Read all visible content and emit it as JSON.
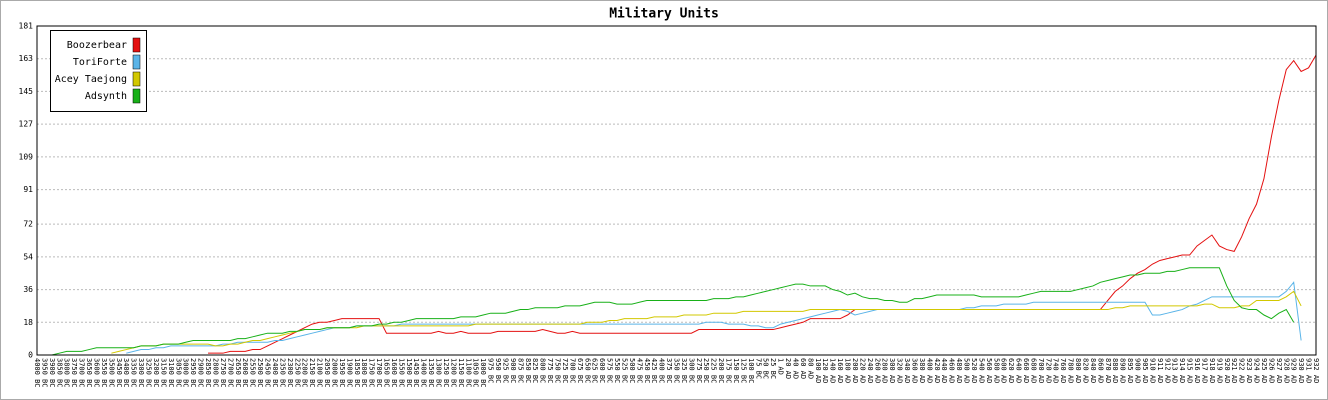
{
  "chart_data": {
    "type": "line",
    "title": "Military Units",
    "categories": [
      "4000 BC",
      "3950 BC",
      "3900 BC",
      "3850 BC",
      "3800 BC",
      "3750 BC",
      "3700 BC",
      "3650 BC",
      "3600 BC",
      "3550 BC",
      "3500 BC",
      "3450 BC",
      "3400 BC",
      "3350 BC",
      "3300 BC",
      "3250 BC",
      "3200 BC",
      "3150 BC",
      "3100 BC",
      "3050 BC",
      "3000 BC",
      "2950 BC",
      "2900 BC",
      "2850 BC",
      "2800 BC",
      "2750 BC",
      "2700 BC",
      "2650 BC",
      "2600 BC",
      "2550 BC",
      "2500 BC",
      "2450 BC",
      "2400 BC",
      "2350 BC",
      "2300 BC",
      "2250 BC",
      "2200 BC",
      "2150 BC",
      "2100 BC",
      "2050 BC",
      "2000 BC",
      "1950 BC",
      "1900 BC",
      "1850 BC",
      "1800 BC",
      "1750 BC",
      "1700 BC",
      "1650 BC",
      "1600 BC",
      "1550 BC",
      "1500 BC",
      "1450 BC",
      "1400 BC",
      "1350 BC",
      "1300 BC",
      "1250 BC",
      "1200 BC",
      "1150 BC",
      "1100 BC",
      "1050 BC",
      "1000 BC",
      "975 BC",
      "950 BC",
      "925 BC",
      "900 BC",
      "875 BC",
      "850 BC",
      "825 BC",
      "800 BC",
      "775 BC",
      "750 BC",
      "725 BC",
      "700 BC",
      "675 BC",
      "650 BC",
      "625 BC",
      "600 BC",
      "575 BC",
      "550 BC",
      "525 BC",
      "500 BC",
      "475 BC",
      "450 BC",
      "425 BC",
      "400 BC",
      "375 BC",
      "350 BC",
      "325 BC",
      "300 BC",
      "275 BC",
      "250 BC",
      "225 BC",
      "200 BC",
      "175 BC",
      "150 BC",
      "125 BC",
      "100 BC",
      "75 BC",
      "50 BC",
      "25 BC",
      "1 AD",
      "20 AD",
      "40 AD",
      "60 AD",
      "80 AD",
      "100 AD",
      "120 AD",
      "140 AD",
      "160 AD",
      "180 AD",
      "200 AD",
      "220 AD",
      "240 AD",
      "260 AD",
      "280 AD",
      "300 AD",
      "320 AD",
      "340 AD",
      "360 AD",
      "380 AD",
      "400 AD",
      "420 AD",
      "440 AD",
      "460 AD",
      "480 AD",
      "500 AD",
      "520 AD",
      "540 AD",
      "560 AD",
      "580 AD",
      "600 AD",
      "620 AD",
      "640 AD",
      "660 AD",
      "680 AD",
      "700 AD",
      "720 AD",
      "740 AD",
      "760 AD",
      "780 AD",
      "800 AD",
      "820 AD",
      "840 AD",
      "860 AD",
      "870 AD",
      "880 AD",
      "890 AD",
      "895 AD",
      "900 AD",
      "905 AD",
      "910 AD",
      "911 AD",
      "912 AD",
      "913 AD",
      "914 AD",
      "915 AD",
      "916 AD",
      "917 AD",
      "918 AD",
      "919 AD",
      "920 AD",
      "921 AD",
      "922 AD",
      "923 AD",
      "924 AD",
      "925 AD",
      "926 AD",
      "927 AD",
      "928 AD",
      "929 AD",
      "930 AD",
      "931 AD",
      "932 AD"
    ],
    "series": [
      {
        "name": "Boozerbear",
        "color": "#e41010",
        "values": [
          null,
          null,
          null,
          null,
          null,
          null,
          null,
          null,
          null,
          null,
          null,
          null,
          null,
          null,
          null,
          null,
          null,
          null,
          null,
          null,
          null,
          null,
          null,
          1,
          1,
          1,
          2,
          2,
          2,
          3,
          3,
          5,
          7,
          9,
          11,
          13,
          15,
          17,
          18,
          18,
          19,
          20,
          20,
          20,
          20,
          20,
          20,
          12,
          12,
          12,
          12,
          12,
          12,
          12,
          13,
          12,
          12,
          13,
          12,
          12,
          12,
          12,
          13,
          13,
          13,
          13,
          13,
          13,
          14,
          13,
          12,
          12,
          13,
          12,
          12,
          12,
          12,
          12,
          12,
          12,
          12,
          12,
          12,
          12,
          12,
          12,
          12,
          12,
          12,
          14,
          14,
          14,
          14,
          14,
          14,
          14,
          14,
          14,
          14,
          14,
          15,
          16,
          17,
          18,
          20,
          20,
          20,
          20,
          20,
          22,
          25,
          25,
          25,
          25,
          25,
          25,
          25,
          25,
          25,
          25,
          25,
          25,
          25,
          25,
          25,
          25,
          25,
          25,
          25,
          25,
          25,
          25,
          25,
          25,
          25,
          25,
          25,
          25,
          25,
          25,
          25,
          25,
          25,
          25,
          30,
          35,
          38,
          42,
          45,
          47,
          50,
          52,
          53,
          54,
          55,
          55,
          60,
          63,
          66,
          60,
          58,
          57,
          65,
          75,
          83,
          97,
          120,
          140,
          157,
          162,
          156,
          158,
          165
        ]
      },
      {
        "name": "ToriForte",
        "color": "#5ab4e8",
        "values": [
          null,
          null,
          null,
          null,
          null,
          null,
          null,
          null,
          null,
          null,
          null,
          null,
          1,
          2,
          3,
          3,
          4,
          4,
          5,
          5,
          5,
          5,
          5,
          5,
          5,
          6,
          6,
          7,
          7,
          7,
          7,
          7,
          8,
          8,
          9,
          10,
          11,
          12,
          13,
          14,
          15,
          15,
          15,
          16,
          16,
          16,
          16,
          16,
          16,
          17,
          17,
          17,
          17,
          17,
          17,
          17,
          17,
          17,
          17,
          17,
          17,
          17,
          17,
          17,
          17,
          17,
          17,
          17,
          17,
          17,
          17,
          17,
          17,
          17,
          17,
          17,
          17,
          17,
          17,
          17,
          17,
          17,
          17,
          17,
          17,
          17,
          17,
          17,
          17,
          17,
          18,
          18,
          18,
          17,
          17,
          17,
          16,
          16,
          15,
          15,
          17,
          18,
          19,
          20,
          21,
          22,
          23,
          24,
          25,
          24,
          22,
          23,
          24,
          25,
          25,
          25,
          25,
          25,
          25,
          25,
          25,
          25,
          25,
          25,
          25,
          26,
          26,
          27,
          27,
          27,
          28,
          28,
          28,
          28,
          29,
          29,
          29,
          29,
          29,
          29,
          29,
          29,
          29,
          29,
          29,
          29,
          29,
          29,
          29,
          29,
          22,
          22,
          23,
          24,
          25,
          27,
          28,
          30,
          32,
          32,
          32,
          32,
          32,
          32,
          32,
          32,
          32,
          32,
          35,
          40,
          8,
          null,
          null
        ]
      },
      {
        "name": "Acey Taejong",
        "color": "#d2c800",
        "values": [
          null,
          null,
          null,
          null,
          null,
          null,
          null,
          null,
          null,
          null,
          1,
          2,
          3,
          4,
          5,
          5,
          5,
          6,
          6,
          6,
          6,
          6,
          6,
          6,
          5,
          5,
          6,
          6,
          7,
          8,
          8,
          9,
          10,
          11,
          12,
          13,
          14,
          14,
          14,
          15,
          15,
          15,
          15,
          15,
          16,
          16,
          16,
          16,
          16,
          16,
          16,
          16,
          16,
          16,
          16,
          16,
          16,
          16,
          16,
          17,
          17,
          17,
          17,
          17,
          17,
          17,
          17,
          17,
          17,
          17,
          17,
          17,
          17,
          17,
          18,
          18,
          18,
          19,
          19,
          20,
          20,
          20,
          20,
          21,
          21,
          21,
          21,
          22,
          22,
          22,
          22,
          23,
          23,
          23,
          23,
          24,
          24,
          24,
          24,
          24,
          24,
          24,
          24,
          24,
          25,
          25,
          25,
          25,
          25,
          25,
          25,
          25,
          25,
          25,
          25,
          25,
          25,
          25,
          25,
          25,
          25,
          25,
          25,
          25,
          25,
          25,
          25,
          25,
          25,
          25,
          25,
          25,
          25,
          25,
          25,
          25,
          25,
          25,
          25,
          25,
          25,
          25,
          25,
          25,
          25,
          26,
          26,
          27,
          27,
          27,
          27,
          27,
          27,
          27,
          27,
          27,
          27,
          28,
          28,
          26,
          26,
          26,
          27,
          27,
          30,
          30,
          30,
          30,
          32,
          35,
          27,
          null,
          null
        ]
      },
      {
        "name": "Adsynth",
        "color": "#18b018",
        "values": [
          0,
          0,
          0,
          1,
          2,
          2,
          2,
          3,
          4,
          4,
          4,
          4,
          4,
          4,
          5,
          5,
          5,
          6,
          6,
          6,
          7,
          8,
          8,
          8,
          8,
          8,
          8,
          9,
          9,
          10,
          11,
          12,
          12,
          12,
          13,
          13,
          14,
          14,
          14,
          15,
          15,
          15,
          15,
          16,
          16,
          16,
          17,
          17,
          18,
          18,
          19,
          20,
          20,
          20,
          20,
          20,
          20,
          21,
          21,
          21,
          22,
          23,
          23,
          23,
          24,
          25,
          25,
          26,
          26,
          26,
          26,
          27,
          27,
          27,
          28,
          29,
          29,
          29,
          28,
          28,
          28,
          29,
          30,
          30,
          30,
          30,
          30,
          30,
          30,
          30,
          30,
          31,
          31,
          31,
          32,
          32,
          33,
          34,
          35,
          36,
          37,
          38,
          39,
          39,
          38,
          38,
          38,
          36,
          35,
          33,
          34,
          32,
          31,
          31,
          30,
          30,
          29,
          29,
          31,
          31,
          32,
          33,
          33,
          33,
          33,
          33,
          33,
          32,
          32,
          32,
          32,
          32,
          32,
          33,
          34,
          35,
          35,
          35,
          35,
          35,
          36,
          37,
          38,
          40,
          41,
          42,
          43,
          44,
          44,
          45,
          45,
          45,
          46,
          46,
          47,
          48,
          48,
          48,
          48,
          48,
          38,
          30,
          26,
          25,
          25,
          22,
          20,
          23,
          25,
          18,
          null,
          null,
          null
        ]
      }
    ],
    "ylim": [
      0,
      181
    ],
    "yticks": [
      0,
      18,
      36,
      54,
      72,
      91,
      109,
      127,
      145,
      163,
      181
    ],
    "grid": true,
    "legend": "upper-left"
  }
}
